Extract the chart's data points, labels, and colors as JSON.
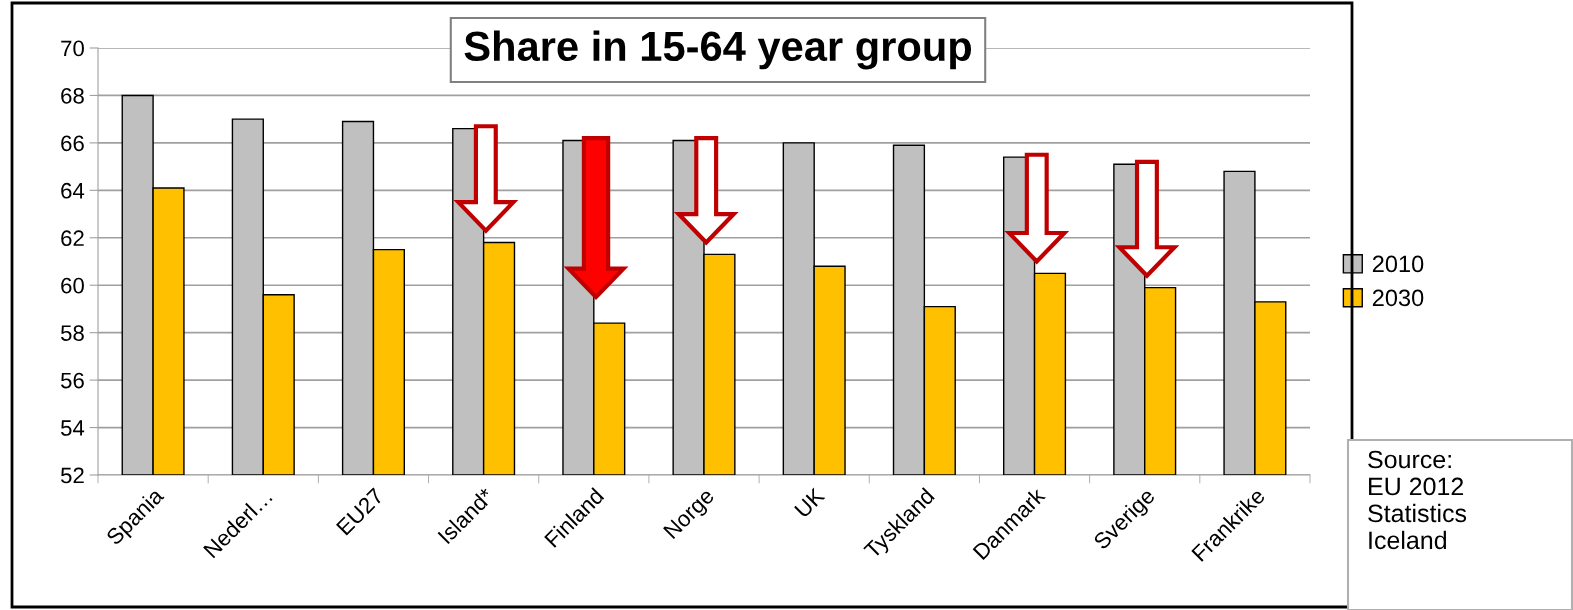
{
  "chart_data": {
    "type": "bar",
    "title": "Share in 15-64 year group",
    "categories": [
      "Spania",
      "Nederl…",
      "EU27",
      "Island*",
      "Finland",
      "Norge",
      "UK",
      "Tyskland",
      "Danmark",
      "Sverige",
      "Frankrike"
    ],
    "series": [
      {
        "name": "2010",
        "color": "#c0c0c0",
        "values": [
          68.0,
          67.0,
          66.9,
          66.6,
          66.1,
          66.1,
          66.0,
          65.9,
          65.4,
          65.1,
          64.8
        ]
      },
      {
        "name": "2030",
        "color": "#ffc000",
        "values": [
          64.1,
          59.6,
          61.5,
          61.8,
          58.4,
          61.3,
          60.8,
          59.1,
          60.5,
          59.9,
          59.3
        ]
      }
    ],
    "ylim": [
      52,
      70
    ],
    "yticks": [
      52,
      54,
      56,
      58,
      60,
      62,
      64,
      66,
      68,
      70
    ],
    "grid": "y",
    "legend": "right",
    "annotations": [
      "Source:\nEU 2012\nStatistics\nIceland"
    ]
  }
}
